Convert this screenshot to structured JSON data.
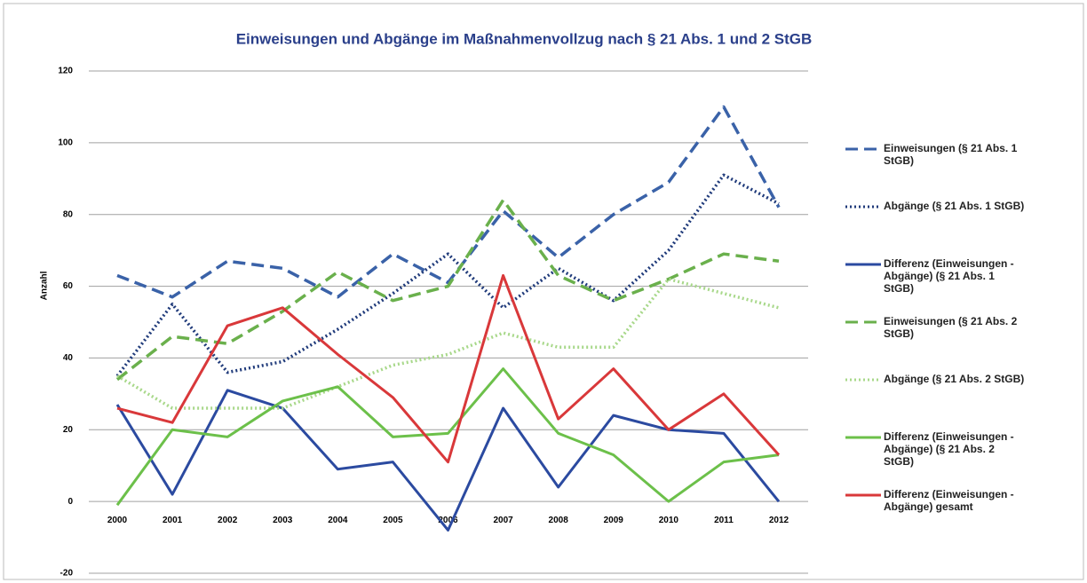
{
  "chart_data": {
    "type": "line",
    "title": "Einweisungen und Abgänge im Maßnahmenvollzug nach § 21 Abs. 1 und 2 StGB",
    "y_label": "Anzahl",
    "categories": [
      "2000",
      "2001",
      "2002",
      "2003",
      "2004",
      "2005",
      "2006",
      "2007",
      "2008",
      "2009",
      "2010",
      "2011",
      "2012"
    ],
    "ylim": [
      -20,
      120
    ],
    "yticks": [
      -20,
      0,
      20,
      40,
      60,
      80,
      100,
      120
    ],
    "grid": true,
    "legend": "right",
    "series": [
      {
        "name": "Einweisungen (§ 21 Abs. 1 StGB)",
        "color": "#3a62a8",
        "dash": "dashed",
        "values": [
          63,
          57,
          67,
          65,
          57,
          69,
          61,
          81,
          68,
          80,
          89,
          110,
          82
        ]
      },
      {
        "name": "Abgänge (§ 21 Abs. 1 StGB)",
        "color": "#1f3a7a",
        "dash": "dotted",
        "values": [
          35,
          55,
          36,
          39,
          48,
          58,
          69,
          54,
          65,
          56,
          70,
          91,
          83
        ]
      },
      {
        "name": "Differenz (Einweisungen - Abgänge) (§ 21 Abs. 1 StGB)",
        "color": "#2b4aa0",
        "dash": "solid",
        "values": [
          27,
          2,
          31,
          26,
          9,
          11,
          -8,
          26,
          4,
          24,
          20,
          19,
          0
        ]
      },
      {
        "name": "Einweisungen (§ 21 Abs. 2 StGB)",
        "color": "#6ab04c",
        "dash": "dashed",
        "values": [
          34,
          46,
          44,
          53,
          64,
          56,
          60,
          84,
          63,
          56,
          62,
          69,
          67
        ]
      },
      {
        "name": "Abgänge (§ 21 Abs. 2 StGB)",
        "color": "#a8d88a",
        "dash": "dotted",
        "values": [
          35,
          26,
          26,
          26,
          32,
          38,
          41,
          47,
          43,
          43,
          62,
          58,
          54
        ]
      },
      {
        "name": "Differenz (Einweisungen - Abgänge) (§ 21 Abs. 2 StGB)",
        "color": "#6cc04a",
        "dash": "solid",
        "values": [
          -1,
          20,
          18,
          28,
          32,
          18,
          19,
          37,
          19,
          13,
          0,
          11,
          13
        ]
      },
      {
        "name": "Differenz (Einweisungen - Abgänge) gesamt",
        "color": "#d9383a",
        "dash": "solid",
        "values": [
          26,
          22,
          49,
          54,
          41,
          29,
          11,
          63,
          23,
          37,
          20,
          30,
          13
        ]
      }
    ]
  }
}
